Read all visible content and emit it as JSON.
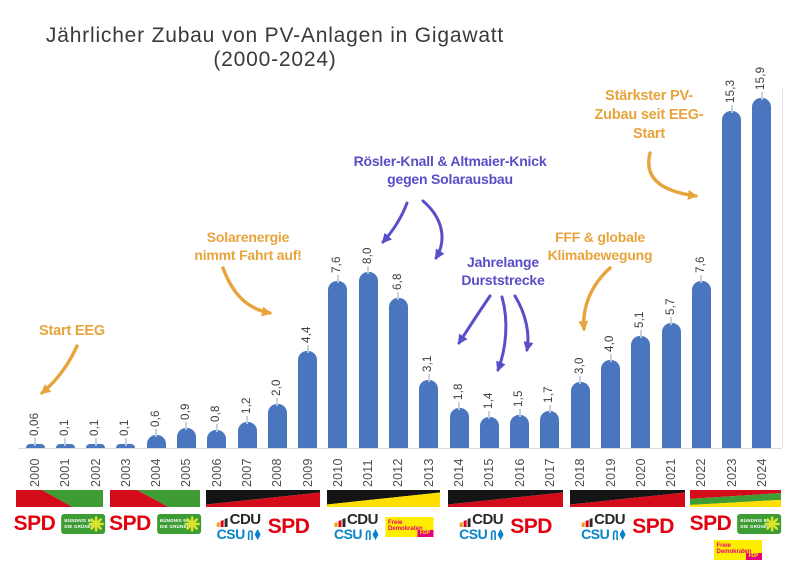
{
  "title": {
    "line1": "Jährlicher Zubau von PV-Anlagen in Gigawatt",
    "line2": "(2000-2024)"
  },
  "chart_data": {
    "type": "bar",
    "title": "Jährlicher Zubau von PV-Anlagen in Gigawatt (2000-2024)",
    "xlabel": "",
    "ylabel": "",
    "ylim": [
      0,
      16.5
    ],
    "grid": false,
    "bar_color": "#4a76bf",
    "categories": [
      "2000",
      "2001",
      "2002",
      "2003",
      "2004",
      "2005",
      "2006",
      "2007",
      "2008",
      "2009",
      "2010",
      "2011",
      "2012",
      "2013",
      "2014",
      "2015",
      "2016",
      "2017",
      "2018",
      "2019",
      "2020",
      "2021",
      "2022",
      "2023",
      "2024"
    ],
    "values": [
      0.06,
      0.1,
      0.1,
      0.1,
      0.6,
      0.9,
      0.8,
      1.2,
      2.0,
      4.4,
      7.6,
      8.0,
      6.8,
      3.1,
      1.8,
      1.4,
      1.5,
      1.7,
      3.0,
      4.0,
      5.1,
      5.7,
      7.6,
      15.3,
      15.9
    ],
    "value_labels": [
      "0,06",
      "0,1",
      "0,1",
      "0,1",
      "0,6",
      "0,9",
      "0,8",
      "1,2",
      "2,0",
      "4,4",
      "7,6",
      "8,0",
      "6,8",
      "3,1",
      "1,8",
      "1,4",
      "1,5",
      "1,7",
      "3,0",
      "4,0",
      "5,1",
      "5,7",
      "7,6",
      "15,3",
      "15,9"
    ]
  },
  "annotations": [
    {
      "id": "start-eeg",
      "color": "orange",
      "lines": [
        "Start EEG"
      ]
    },
    {
      "id": "solar",
      "color": "orange",
      "lines": [
        "Solarenergie",
        "nimmt Fahrt auf!"
      ]
    },
    {
      "id": "roesler",
      "color": "purple",
      "lines": [
        "Rösler-Knall & Altmaier-Knick",
        "gegen Solarausbau"
      ]
    },
    {
      "id": "durststrecke",
      "color": "purple",
      "lines": [
        "Jahrelange",
        "Durststrecke"
      ]
    },
    {
      "id": "fff",
      "color": "orange",
      "lines": [
        "FFF & globale",
        "Klimabewegung"
      ]
    },
    {
      "id": "staerkster",
      "color": "orange",
      "lines": [
        "Stärkster PV-",
        "Zubau seit EEG-",
        "Start"
      ]
    }
  ],
  "coalitions": [
    {
      "years": "2000-2002",
      "flag": "redgreen",
      "parties": [
        "spd",
        "gruene"
      ]
    },
    {
      "years": "2003-2005",
      "flag": "redgreen",
      "parties": [
        "spd",
        "gruene"
      ]
    },
    {
      "years": "2006-2009",
      "flag": "blackred",
      "parties": [
        "cducsu",
        "spd"
      ]
    },
    {
      "years": "2010-2013",
      "flag": "blackyellow",
      "parties": [
        "cducsu",
        "fdp"
      ]
    },
    {
      "years": "2014-2017",
      "flag": "blackred",
      "parties": [
        "cducsu",
        "spd"
      ]
    },
    {
      "years": "2018-2021",
      "flag": "blackred",
      "parties": [
        "cducsu",
        "spd"
      ]
    },
    {
      "years": "2022-2024",
      "flag": "ampel",
      "parties": [
        "spd",
        "gruene",
        "fdp"
      ]
    }
  ],
  "party_logos": {
    "spd": {
      "text": "SPD"
    },
    "gruene": {
      "line1": "BÜNDNIS 90",
      "line2": "DIE GRÜNEN"
    },
    "cdu": {
      "text": "CDU"
    },
    "csu": {
      "text": "CSU"
    },
    "fdp": {
      "line1": "Freie",
      "line2": "Demokraten",
      "badge": "FDP"
    }
  },
  "palette": {
    "orange": "#e8a43c",
    "purple": "#584ec8",
    "bar_blue": "#4a76bf",
    "spd_red": "#e3000f",
    "gruene_green": "#3e9c35",
    "cdu_dark": "#26282b",
    "csu_blue": "#0783c9",
    "fdp_yellow": "#ffed00",
    "fdp_magenta": "#e5007d",
    "flag_black": "#141414",
    "flag_red": "#d40b1a",
    "flag_green": "#3f9c35",
    "flag_yellow": "#ffde00"
  }
}
